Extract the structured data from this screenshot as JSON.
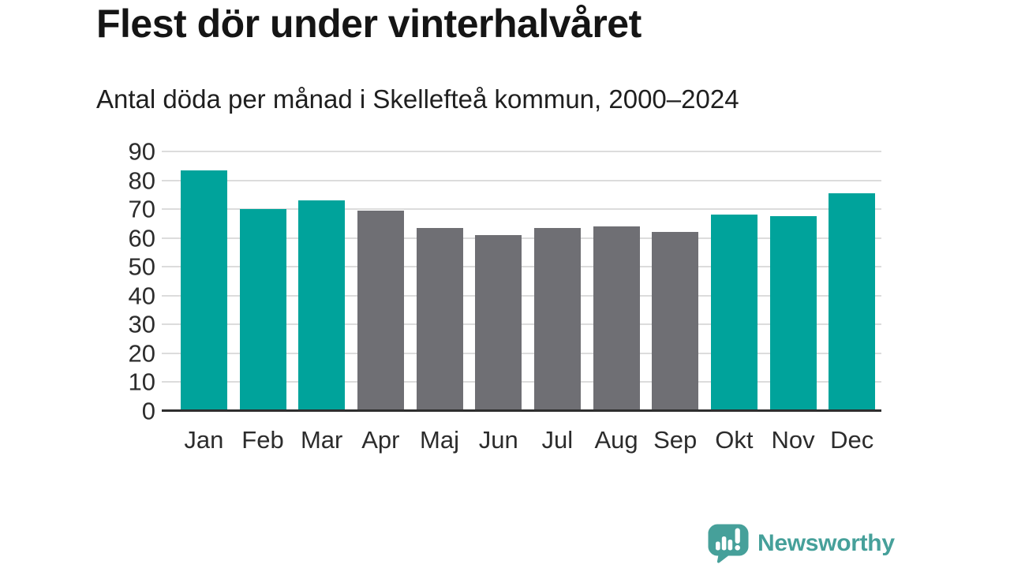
{
  "header": {
    "title": "Flest dör under vinterhalvåret",
    "subtitle": "Antal döda per månad i Skellefteå kommun, 2000–2024"
  },
  "chart_data": {
    "type": "bar",
    "title": "Flest dör under vinterhalvåret",
    "subtitle": "Antal döda per månad i Skellefteå kommun, 2000–2024",
    "categories": [
      "Jan",
      "Feb",
      "Mar",
      "Apr",
      "Maj",
      "Jun",
      "Jul",
      "Aug",
      "Sep",
      "Okt",
      "Nov",
      "Dec"
    ],
    "values": [
      83.5,
      70,
      73,
      69.5,
      63.5,
      61,
      63.5,
      64,
      62,
      68,
      67.5,
      75.5
    ],
    "bar_colors": [
      "#00a39b",
      "#00a39b",
      "#00a39b",
      "#6f6f74",
      "#6f6f74",
      "#6f6f74",
      "#6f6f74",
      "#6f6f74",
      "#6f6f74",
      "#00a39b",
      "#00a39b",
      "#00a39b"
    ],
    "highlight_color": "#00a39b",
    "muted_color": "#6f6f74",
    "xlabel": "",
    "ylabel": "",
    "ylim": [
      0,
      90
    ],
    "yticks": [
      0,
      10,
      20,
      30,
      40,
      50,
      60,
      70,
      80,
      90
    ],
    "grid": "horizontal",
    "legend": "none"
  },
  "branding": {
    "logo_text": "Newsworthy",
    "logo_color": "#46a09a",
    "logo_icon": "newsworthy-speech-bubble-bar-chart-icon"
  }
}
